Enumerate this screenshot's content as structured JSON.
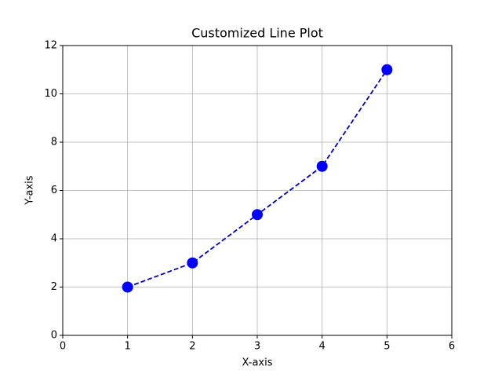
{
  "chart_data": {
    "type": "line",
    "title": "Customized Line Plot",
    "x_label": "X-axis",
    "y_label": "Y-axis",
    "x": [
      1,
      2,
      3,
      4,
      5
    ],
    "series": [
      {
        "name": "y",
        "color": "#0000ff",
        "line_color": "#0000cd",
        "linestyle": "dashed",
        "marker": "circle",
        "values": [
          2,
          3,
          5,
          7,
          11
        ]
      }
    ],
    "xlim": [
      0,
      6
    ],
    "xticks": [
      0,
      1,
      2,
      3,
      4,
      5,
      6
    ],
    "ylim": [
      0,
      12
    ],
    "yticks": [
      0,
      2,
      4,
      6,
      8,
      10,
      12
    ],
    "grid": true,
    "legend": false
  }
}
